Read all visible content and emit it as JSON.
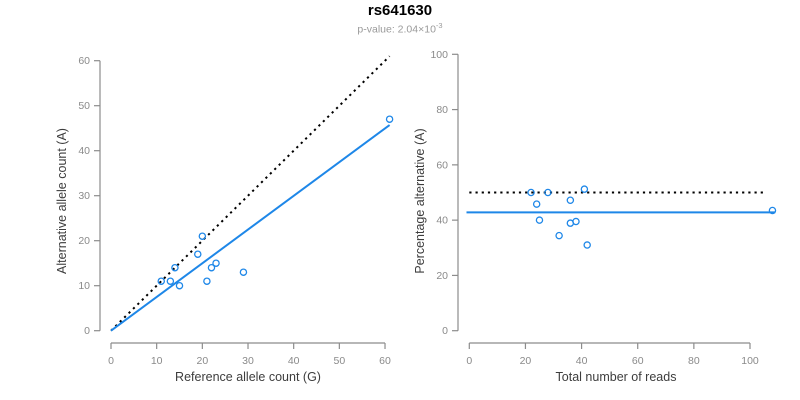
{
  "header": {
    "title": "rs641630",
    "subtitle_base": "p-value: 2.04×10",
    "subtitle_exponent": "-3"
  },
  "colors": {
    "accent_blue": "#1E87E8",
    "identity_black": "#000000",
    "axis_gray": "#8C8C8C",
    "tick_label_gray": "#8A8A8A",
    "axis_title_dark": "#3D3D3D"
  },
  "chart_data": [
    {
      "type": "scatter",
      "name": "allele-counts",
      "xlabel": "Reference allele count (G)",
      "ylabel": "Alternative allele count (A)",
      "xlim": [
        0,
        61
      ],
      "ylim": [
        0,
        61
      ],
      "xticks": [
        0,
        10,
        20,
        30,
        40,
        50,
        60
      ],
      "yticks": [
        0,
        10,
        20,
        30,
        40,
        50,
        60
      ],
      "grid": false,
      "legend": "none",
      "points": [
        [
          11,
          11
        ],
        [
          13,
          11
        ],
        [
          14,
          14
        ],
        [
          15,
          10
        ],
        [
          19,
          17
        ],
        [
          20,
          21
        ],
        [
          21,
          11
        ],
        [
          22,
          14
        ],
        [
          23,
          15
        ],
        [
          29,
          13
        ],
        [
          61,
          47
        ]
      ],
      "lines": [
        {
          "name": "identity",
          "style": "dotted",
          "color_key": "identity_black",
          "from": [
            0,
            0
          ],
          "to": [
            61,
            61
          ]
        },
        {
          "name": "fit",
          "style": "solid",
          "color_key": "accent_blue",
          "from": [
            0,
            0
          ],
          "to": [
            61,
            45.7
          ]
        }
      ]
    },
    {
      "type": "scatter",
      "name": "percentage-vs-reads",
      "xlabel": "Total number of reads",
      "ylabel": "Percentage alternative (A)",
      "xlim": [
        0,
        109
      ],
      "ylim": [
        0,
        100
      ],
      "xticks": [
        0,
        20,
        40,
        60,
        80,
        100
      ],
      "yticks": [
        0,
        20,
        40,
        60,
        80,
        100
      ],
      "grid": false,
      "legend": "none",
      "points": [
        [
          22,
          50
        ],
        [
          24,
          45.8
        ],
        [
          28,
          50
        ],
        [
          25,
          40
        ],
        [
          36,
          47.2
        ],
        [
          41,
          51.2
        ],
        [
          32,
          34.4
        ],
        [
          36,
          38.9
        ],
        [
          38,
          39.5
        ],
        [
          42,
          31
        ],
        [
          108,
          43.5
        ]
      ],
      "lines": [
        {
          "name": "expected-50pct",
          "style": "dotted",
          "color_key": "identity_black",
          "from": [
            0,
            50
          ],
          "to": [
            106,
            50
          ]
        },
        {
          "name": "fit",
          "style": "solid",
          "color_key": "accent_blue",
          "from": [
            -1,
            42.8
          ],
          "to": [
            109,
            42.8
          ]
        }
      ]
    }
  ]
}
